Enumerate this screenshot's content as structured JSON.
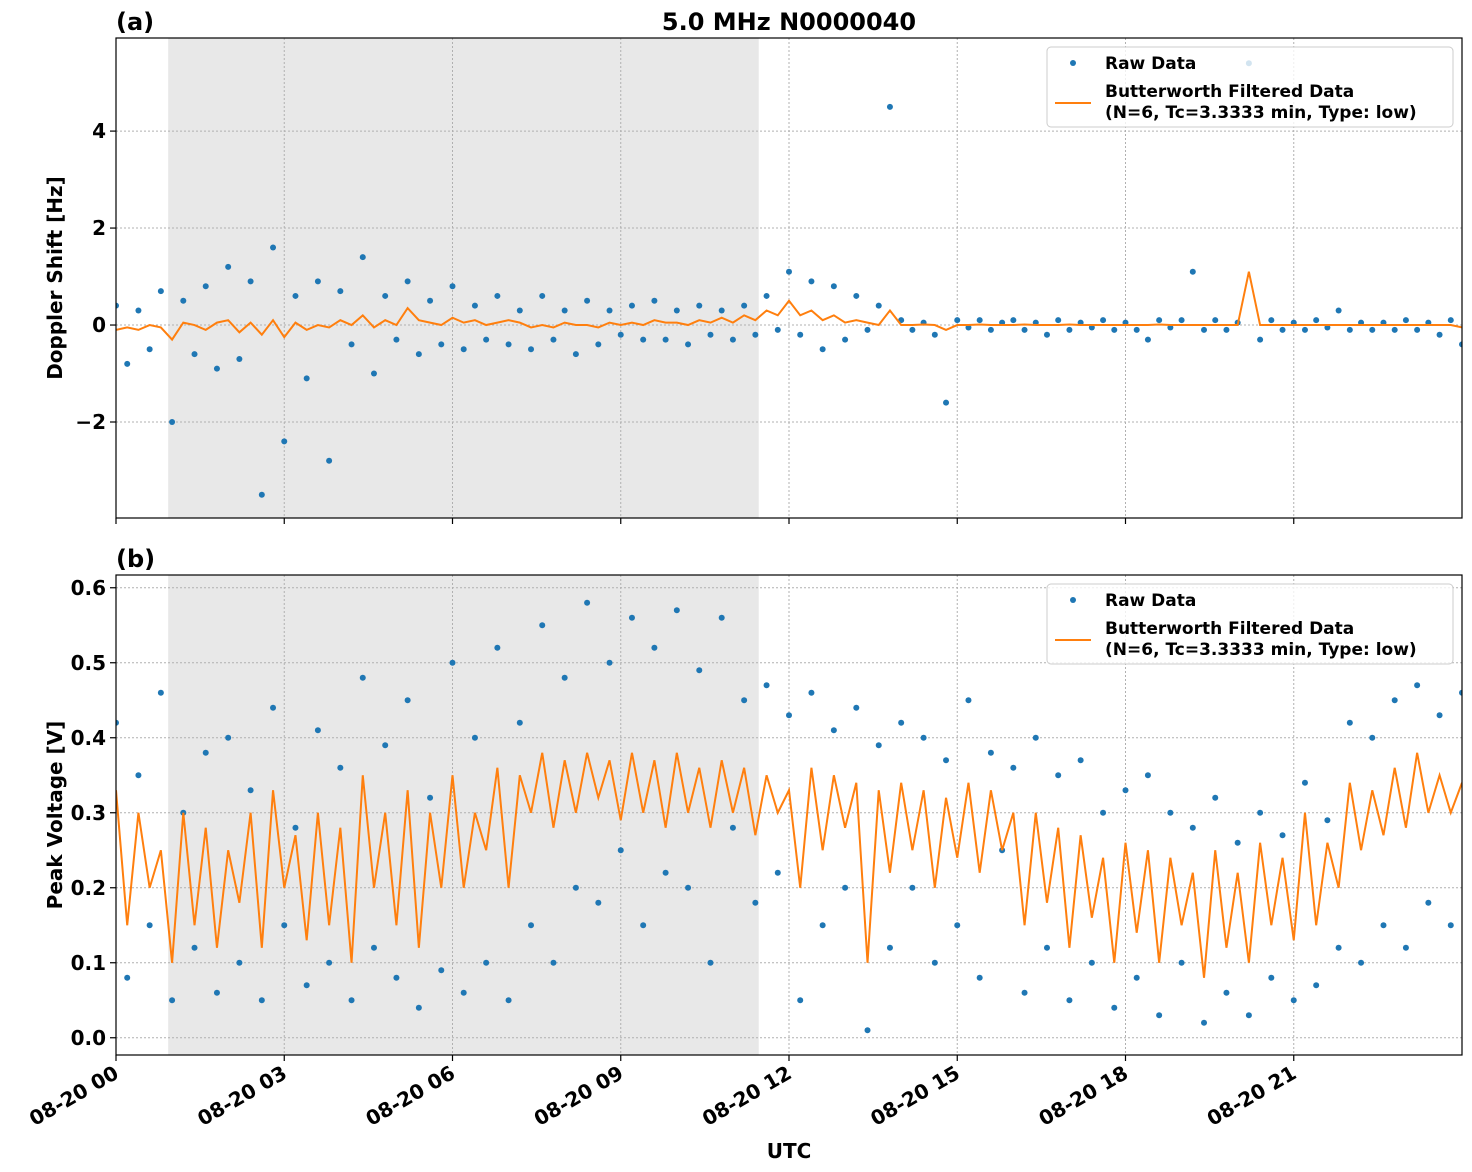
{
  "chart_data": [
    {
      "type": "line",
      "panel_label": "(a)",
      "title": "5.0 MHz N0000040",
      "ylabel": "Doppler Shift [Hz]",
      "xlim": [
        0,
        24
      ],
      "xticks": [
        0,
        3,
        6,
        9,
        12,
        15,
        18,
        21
      ],
      "ylim": [
        -3.98,
        5.92
      ],
      "yticks": [
        {
          "value": -2,
          "label": "−2"
        },
        0,
        2,
        4
      ],
      "grid": true,
      "legend": "upper right",
      "shade": [
        0.93,
        11.46
      ],
      "x": [
        0,
        0.2,
        0.4,
        0.6,
        0.8,
        1,
        1.2,
        1.4,
        1.6,
        1.8,
        2,
        2.2,
        2.4,
        2.6,
        2.8,
        3,
        3.2,
        3.4,
        3.6,
        3.8,
        4,
        4.2,
        4.4,
        4.6,
        4.8,
        5,
        5.2,
        5.4,
        5.6,
        5.8,
        6,
        6.2,
        6.4,
        6.6,
        6.8,
        7,
        7.2,
        7.4,
        7.6,
        7.8,
        8,
        8.2,
        8.4,
        8.6,
        8.8,
        9,
        9.2,
        9.4,
        9.6,
        9.8,
        10,
        10.2,
        10.4,
        10.6,
        10.8,
        11,
        11.2,
        11.4,
        11.6,
        11.8,
        12,
        12.2,
        12.4,
        12.6,
        12.8,
        13,
        13.2,
        13.4,
        13.6,
        13.8,
        14,
        14.2,
        14.4,
        14.6,
        14.8,
        15,
        15.2,
        15.4,
        15.6,
        15.8,
        16,
        16.2,
        16.4,
        16.6,
        16.8,
        17,
        17.2,
        17.4,
        17.6,
        17.8,
        18,
        18.2,
        18.4,
        18.6,
        18.8,
        19,
        19.2,
        19.4,
        19.6,
        19.8,
        20,
        20.2,
        20.4,
        20.6,
        20.8,
        21,
        21.2,
        21.4,
        21.6,
        21.8,
        22,
        22.2,
        22.4,
        22.6,
        22.8,
        23,
        23.2,
        23.4,
        23.6,
        23.8,
        24
      ],
      "series": [
        {
          "name": "Raw Data",
          "style": "scatter",
          "color": "#1f77b4",
          "values": [
            0.4,
            -0.8,
            0.3,
            -0.5,
            0.7,
            -2.0,
            0.5,
            -0.6,
            0.8,
            -0.9,
            1.2,
            -0.7,
            0.9,
            -3.5,
            1.6,
            -2.4,
            0.6,
            -1.1,
            0.9,
            -2.8,
            0.7,
            -0.4,
            1.4,
            -1.0,
            0.6,
            -0.3,
            0.9,
            -0.6,
            0.5,
            -0.4,
            0.8,
            -0.5,
            0.4,
            -0.3,
            0.6,
            -0.4,
            0.3,
            -0.5,
            0.6,
            -0.3,
            0.3,
            -0.6,
            0.5,
            -0.4,
            0.3,
            -0.2,
            0.4,
            -0.3,
            0.5,
            -0.3,
            0.3,
            -0.4,
            0.4,
            -0.2,
            0.3,
            -0.3,
            0.4,
            -0.2,
            0.6,
            -0.1,
            1.1,
            -0.2,
            0.9,
            -0.5,
            0.8,
            -0.3,
            0.6,
            -0.1,
            0.4,
            4.5,
            0.1,
            -0.1,
            0.05,
            -0.2,
            -1.6,
            0.1,
            -0.05,
            0.1,
            -0.1,
            0.05,
            0.1,
            -0.1,
            0.05,
            -0.2,
            0.1,
            -0.1,
            0.05,
            -0.05,
            0.1,
            -0.1,
            0.05,
            -0.1,
            -0.3,
            0.1,
            -0.05,
            0.1,
            1.1,
            -0.1,
            0.1,
            -0.1,
            0.05,
            5.4,
            -0.3,
            0.1,
            -0.1,
            0.05,
            -0.1,
            0.1,
            -0.05,
            0.3,
            -0.1,
            0.05,
            -0.1,
            0.05,
            -0.1,
            0.1,
            -0.1,
            0.05,
            -0.2,
            0.1,
            -0.4
          ]
        },
        {
          "name": "Butterworth Filtered Data\n(N=6, Tc=3.3333 min, Type: low)",
          "style": "line",
          "color": "#ff7f0e",
          "values": [
            -0.1,
            -0.05,
            -0.1,
            0,
            -0.05,
            -0.3,
            0.05,
            0,
            -0.1,
            0.05,
            0.1,
            -0.15,
            0.05,
            -0.2,
            0.1,
            -0.25,
            0.05,
            -0.1,
            0,
            -0.05,
            0.1,
            0,
            0.2,
            -0.05,
            0.1,
            0,
            0.35,
            0.1,
            0.05,
            0,
            0.15,
            0.05,
            0.1,
            0,
            0.05,
            0.1,
            0.05,
            -0.05,
            0,
            -0.05,
            0.05,
            0,
            0,
            -0.05,
            0.05,
            0,
            0.05,
            0,
            0.1,
            0.05,
            0.05,
            0,
            0.1,
            0.05,
            0.15,
            0.05,
            0.2,
            0.1,
            0.3,
            0.2,
            0.5,
            0.2,
            0.3,
            0.1,
            0.2,
            0.05,
            0.1,
            0.05,
            0,
            0.3,
            0,
            0,
            0.01,
            0,
            -0.1,
            0,
            0,
            0.01,
            0,
            0,
            0,
            0.01,
            0,
            0,
            0,
            0.01,
            0,
            0,
            0,
            0,
            0,
            0,
            0,
            0.01,
            0,
            0,
            0,
            0,
            0,
            0,
            0,
            1.1,
            0,
            0,
            0,
            0,
            0,
            0,
            0,
            0,
            0,
            0,
            0,
            0,
            0,
            0,
            0,
            0,
            0,
            0,
            -0.05
          ]
        }
      ]
    },
    {
      "type": "line",
      "panel_label": "(b)",
      "ylabel": "Peak Voltage [V]",
      "xlabel": "UTC",
      "xlim": [
        0,
        24
      ],
      "xticks": [
        {
          "value": 0,
          "label": "08-20 00"
        },
        {
          "value": 3,
          "label": "08-20 03"
        },
        {
          "value": 6,
          "label": "08-20 06"
        },
        {
          "value": 9,
          "label": "08-20 09"
        },
        {
          "value": 12,
          "label": "08-20 12"
        },
        {
          "value": 15,
          "label": "08-20 15"
        },
        {
          "value": 18,
          "label": "08-20 18"
        },
        {
          "value": 21,
          "label": "08-20 21"
        }
      ],
      "ylim": [
        -0.023,
        0.617
      ],
      "yticks": [
        {
          "value": 0,
          "label": "0.0"
        },
        0.1,
        0.2,
        0.3,
        0.4,
        0.5,
        0.6
      ],
      "grid": true,
      "legend": "upper right",
      "shade": [
        0.93,
        11.46
      ],
      "x": [
        0,
        0.2,
        0.4,
        0.6,
        0.8,
        1,
        1.2,
        1.4,
        1.6,
        1.8,
        2,
        2.2,
        2.4,
        2.6,
        2.8,
        3,
        3.2,
        3.4,
        3.6,
        3.8,
        4,
        4.2,
        4.4,
        4.6,
        4.8,
        5,
        5.2,
        5.4,
        5.6,
        5.8,
        6,
        6.2,
        6.4,
        6.6,
        6.8,
        7,
        7.2,
        7.4,
        7.6,
        7.8,
        8,
        8.2,
        8.4,
        8.6,
        8.8,
        9,
        9.2,
        9.4,
        9.6,
        9.8,
        10,
        10.2,
        10.4,
        10.6,
        10.8,
        11,
        11.2,
        11.4,
        11.6,
        11.8,
        12,
        12.2,
        12.4,
        12.6,
        12.8,
        13,
        13.2,
        13.4,
        13.6,
        13.8,
        14,
        14.2,
        14.4,
        14.6,
        14.8,
        15,
        15.2,
        15.4,
        15.6,
        15.8,
        16,
        16.2,
        16.4,
        16.6,
        16.8,
        17,
        17.2,
        17.4,
        17.6,
        17.8,
        18,
        18.2,
        18.4,
        18.6,
        18.8,
        19,
        19.2,
        19.4,
        19.6,
        19.8,
        20,
        20.2,
        20.4,
        20.6,
        20.8,
        21,
        21.2,
        21.4,
        21.6,
        21.8,
        22,
        22.2,
        22.4,
        22.6,
        22.8,
        23,
        23.2,
        23.4,
        23.6,
        23.8,
        24
      ],
      "series": [
        {
          "name": "Raw Data",
          "style": "scatter",
          "color": "#1f77b4",
          "values": [
            0.42,
            0.08,
            0.35,
            0.15,
            0.46,
            0.05,
            0.3,
            0.12,
            0.38,
            0.06,
            0.4,
            0.1,
            0.33,
            0.05,
            0.44,
            0.15,
            0.28,
            0.07,
            0.41,
            0.1,
            0.36,
            0.05,
            0.48,
            0.12,
            0.39,
            0.08,
            0.45,
            0.04,
            0.32,
            0.09,
            0.5,
            0.06,
            0.4,
            0.1,
            0.52,
            0.05,
            0.42,
            0.15,
            0.55,
            0.1,
            0.48,
            0.2,
            0.58,
            0.18,
            0.5,
            0.25,
            0.56,
            0.15,
            0.52,
            0.22,
            0.57,
            0.2,
            0.49,
            0.1,
            0.56,
            0.28,
            0.45,
            0.18,
            0.47,
            0.22,
            0.43,
            0.05,
            0.46,
            0.15,
            0.41,
            0.2,
            0.44,
            0.01,
            0.39,
            0.12,
            0.42,
            0.2,
            0.4,
            0.1,
            0.37,
            0.15,
            0.45,
            0.08,
            0.38,
            0.25,
            0.36,
            0.06,
            0.4,
            0.12,
            0.35,
            0.05,
            0.37,
            0.1,
            0.3,
            0.04,
            0.33,
            0.08,
            0.35,
            0.03,
            0.3,
            0.1,
            0.28,
            0.02,
            0.32,
            0.06,
            0.26,
            0.03,
            0.3,
            0.08,
            0.27,
            0.05,
            0.34,
            0.07,
            0.29,
            0.12,
            0.42,
            0.1,
            0.4,
            0.15,
            0.45,
            0.12,
            0.47,
            0.18,
            0.43,
            0.15,
            0.46
          ]
        },
        {
          "name": "Butterworth Filtered Data\n(N=6, Tc=3.3333 min, Type: low)",
          "style": "line",
          "color": "#ff7f0e",
          "values": [
            0.33,
            0.15,
            0.3,
            0.2,
            0.25,
            0.1,
            0.3,
            0.15,
            0.28,
            0.12,
            0.25,
            0.18,
            0.3,
            0.12,
            0.33,
            0.2,
            0.27,
            0.13,
            0.3,
            0.15,
            0.28,
            0.1,
            0.35,
            0.2,
            0.3,
            0.15,
            0.33,
            0.12,
            0.3,
            0.2,
            0.35,
            0.2,
            0.3,
            0.25,
            0.36,
            0.2,
            0.35,
            0.3,
            0.38,
            0.28,
            0.37,
            0.3,
            0.38,
            0.32,
            0.37,
            0.29,
            0.38,
            0.3,
            0.37,
            0.28,
            0.38,
            0.3,
            0.36,
            0.28,
            0.37,
            0.3,
            0.36,
            0.27,
            0.35,
            0.3,
            0.33,
            0.2,
            0.36,
            0.25,
            0.35,
            0.28,
            0.34,
            0.1,
            0.33,
            0.22,
            0.34,
            0.25,
            0.33,
            0.2,
            0.32,
            0.24,
            0.34,
            0.22,
            0.33,
            0.25,
            0.3,
            0.15,
            0.3,
            0.18,
            0.28,
            0.12,
            0.27,
            0.16,
            0.24,
            0.1,
            0.26,
            0.14,
            0.25,
            0.1,
            0.24,
            0.15,
            0.22,
            0.08,
            0.25,
            0.12,
            0.22,
            0.1,
            0.26,
            0.15,
            0.24,
            0.13,
            0.3,
            0.15,
            0.26,
            0.2,
            0.34,
            0.25,
            0.33,
            0.27,
            0.36,
            0.28,
            0.38,
            0.3,
            0.35,
            0.3,
            0.34
          ]
        }
      ]
    }
  ]
}
